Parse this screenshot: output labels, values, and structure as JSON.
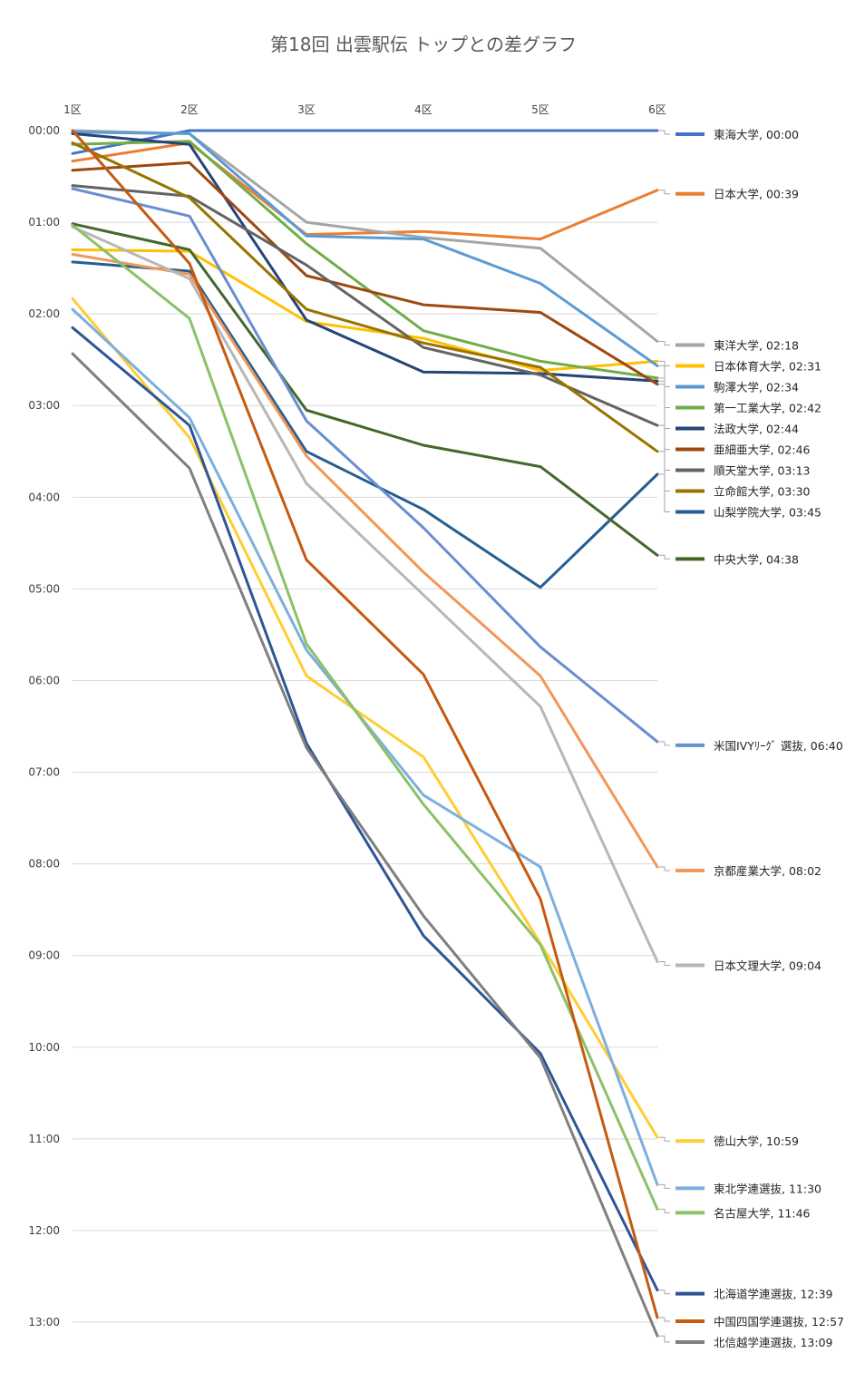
{
  "chart_data": {
    "type": "line",
    "title": "第18回  出雲駅伝  トップとの差グラフ",
    "categories": [
      "1区",
      "2区",
      "3区",
      "4区",
      "5区",
      "6区"
    ],
    "y_ticks": [
      "00:00",
      "01:00",
      "02:00",
      "03:00",
      "04:00",
      "05:00",
      "06:00",
      "07:00",
      "08:00",
      "09:00",
      "10:00",
      "11:00",
      "12:00",
      "13:00"
    ],
    "ylim_seconds": [
      0,
      780
    ],
    "y_inverted": true,
    "grid": true,
    "legend": "right",
    "series": [
      {
        "name": "東海大学",
        "label": "東海大学, 00:00",
        "color": "#4472C4",
        "values": [
          15,
          0,
          0,
          0,
          0,
          0
        ]
      },
      {
        "name": "日本大学",
        "label": "日本大学, 00:39",
        "color": "#ED7D31",
        "values": [
          20,
          8,
          68,
          66,
          71,
          39
        ]
      },
      {
        "name": "東洋大学",
        "label": "東洋大学, 02:18",
        "color": "#A5A5A5",
        "values": [
          0,
          2,
          60,
          70,
          77,
          138
        ]
      },
      {
        "name": "日本体育大学",
        "label": "日本体育大学, 02:31",
        "color": "#FFC000",
        "values": [
          78,
          79,
          125,
          136,
          157,
          151
        ]
      },
      {
        "name": "駒澤大学",
        "label": "駒澤大学, 02:34",
        "color": "#5B9BD5",
        "values": [
          1,
          2,
          69,
          71,
          100,
          154
        ]
      },
      {
        "name": "第一工業大学",
        "label": "第一工業大学, 02:42",
        "color": "#70AD47",
        "values": [
          9,
          7,
          74,
          131,
          151,
          162
        ]
      },
      {
        "name": "法政大学",
        "label": "法政大学, 02:44",
        "color": "#264478",
        "values": [
          2,
          9,
          124,
          158,
          159,
          164
        ]
      },
      {
        "name": "亜細亜大学",
        "label": "亜細亜大学, 02:46",
        "color": "#9E480E",
        "values": [
          26,
          21,
          95,
          114,
          119,
          166
        ]
      },
      {
        "name": "順天堂大学",
        "label": "順天堂大学, 03:13",
        "color": "#636363",
        "values": [
          36,
          43,
          88,
          142,
          160,
          193
        ]
      },
      {
        "name": "立命館大学",
        "label": "立命館大学, 03:30",
        "color": "#997300",
        "values": [
          8,
          44,
          117,
          139,
          155,
          210
        ]
      },
      {
        "name": "山梨学院大学",
        "label": "山梨学院大学, 03:45",
        "color": "#255E91",
        "values": [
          86,
          92,
          210,
          248,
          299,
          225
        ]
      },
      {
        "name": "中央大学",
        "label": "中央大学, 04:38",
        "color": "#43682B",
        "values": [
          61,
          78,
          183,
          206,
          220,
          278
        ]
      },
      {
        "name": "米国IVYリーグ選抜",
        "label": "米国IVYﾘｰｸﾞ 選抜, 06:40",
        "color": "#698ED0",
        "values": [
          38,
          56,
          190,
          260,
          338,
          400
        ]
      },
      {
        "name": "京都産業大学",
        "label": "京都産業大学, 08:02",
        "color": "#F1975A",
        "values": [
          81,
          94,
          213,
          289,
          357,
          482
        ]
      },
      {
        "name": "日本文理大学",
        "label": "日本文理大学, 09:04",
        "color": "#B7B7B7",
        "values": [
          63,
          97,
          231,
          304,
          377,
          544
        ]
      },
      {
        "name": "徳山大学",
        "label": "徳山大学, 10:59",
        "color": "#FFCD33",
        "values": [
          110,
          201,
          357,
          410,
          532,
          659
        ]
      },
      {
        "name": "東北学連選抜",
        "label": "東北学連選抜, 11:30",
        "color": "#7CAFDD",
        "values": [
          117,
          188,
          340,
          435,
          482,
          690
        ]
      },
      {
        "name": "名古屋大学",
        "label": "名古屋大学, 11:46",
        "color": "#8CC168",
        "values": [
          62,
          123,
          336,
          441,
          533,
          706
        ]
      },
      {
        "name": "北海道学連選抜",
        "label": "北海道学連選抜, 12:39",
        "color": "#2F5597",
        "values": [
          129,
          193,
          401,
          527,
          604,
          759
        ]
      },
      {
        "name": "中国四国学連選抜",
        "label": "中国四国学連選抜, 12:57",
        "color": "#C55A11",
        "values": [
          0,
          87,
          281,
          356,
          503,
          777
        ]
      },
      {
        "name": "北信越学連選抜",
        "label": "北信越学連選抜, 13:09",
        "color": "#7F7F7F",
        "values": [
          146,
          221,
          404,
          514,
          607,
          789
        ]
      }
    ]
  }
}
